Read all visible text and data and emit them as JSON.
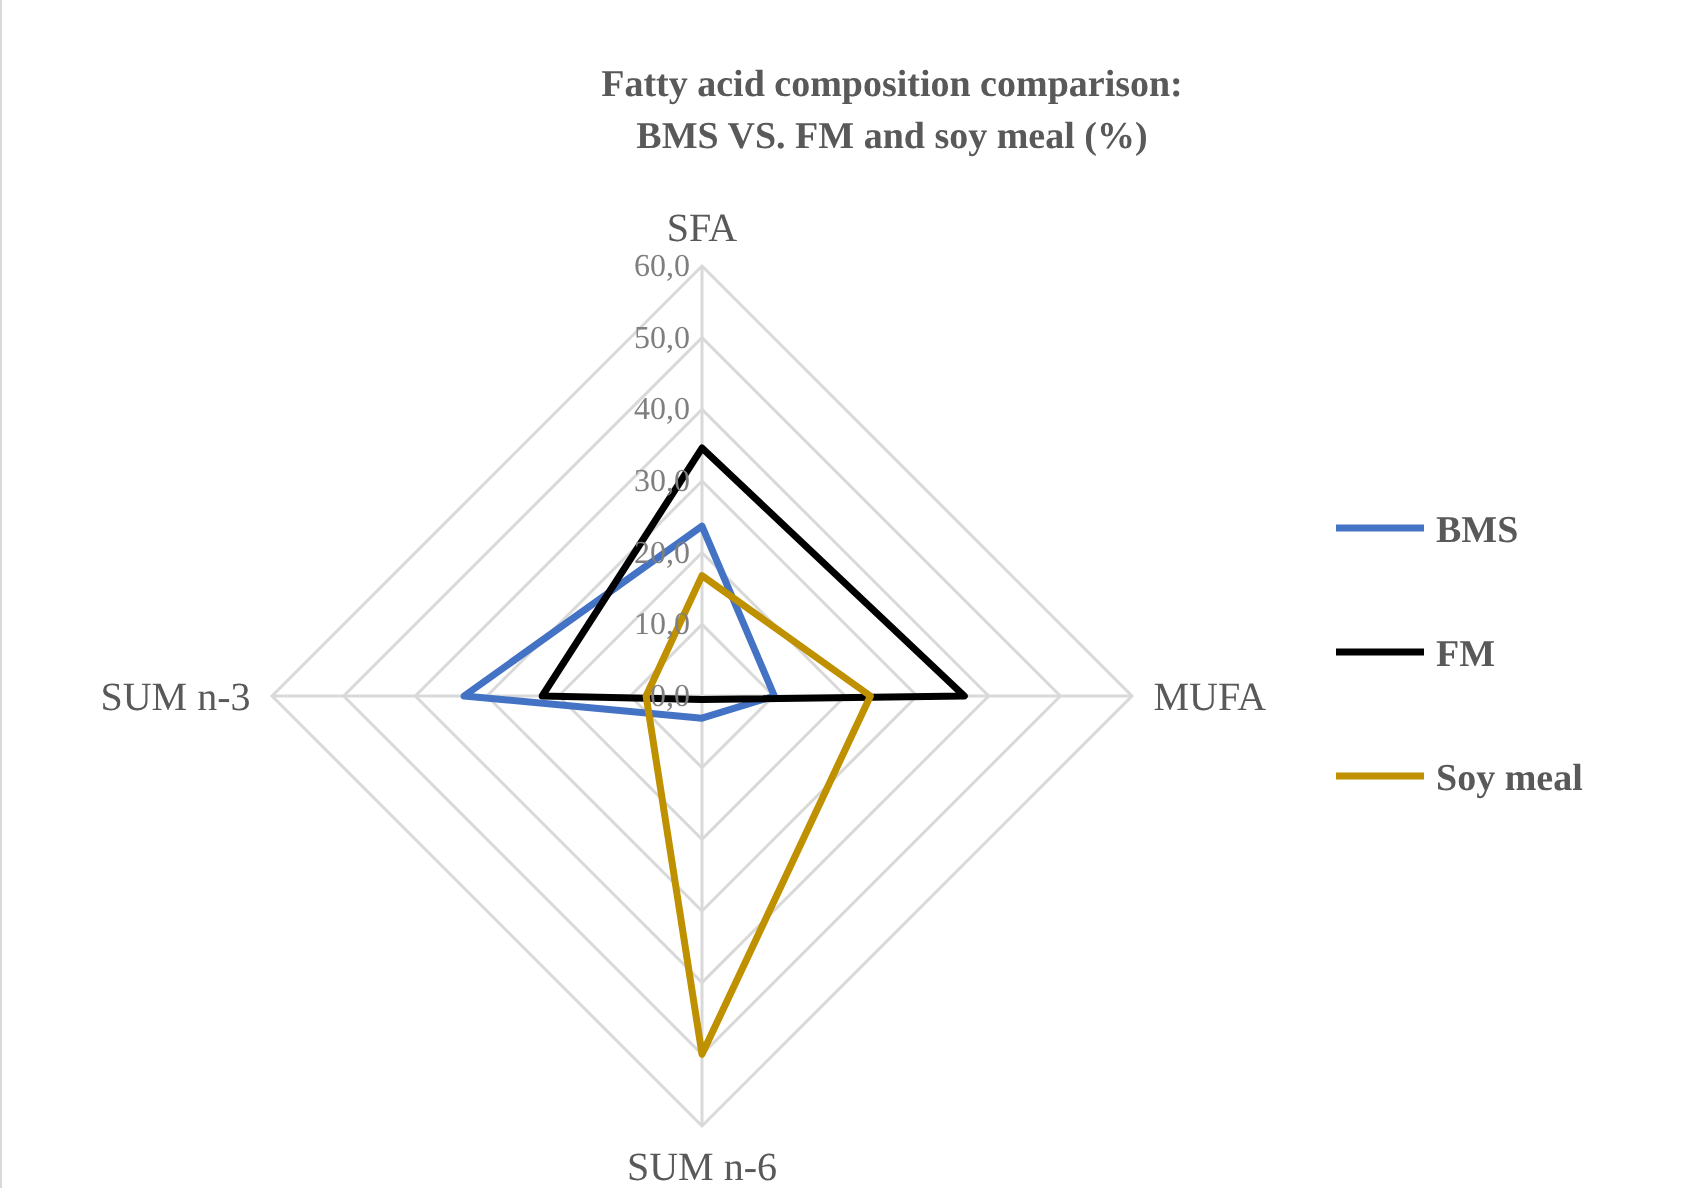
{
  "chart_data": {
    "type": "radar",
    "title": "Fatty acid composition comparison:\nBMS VS. FM and soy meal (%)",
    "categories": [
      "SFA",
      "MUFA",
      "SUM n-6",
      "SUM n-3"
    ],
    "series": [
      {
        "name": "BMS",
        "color": "#4472c4",
        "values": [
          23.7,
          10.1,
          3.1,
          33.2
        ]
      },
      {
        "name": "FM",
        "color": "#000000",
        "values": [
          34.6,
          36.6,
          0.5,
          22.3
        ]
      },
      {
        "name": "Soy meal",
        "color": "#bf9000",
        "values": [
          16.8,
          23.5,
          50.0,
          7.8
        ]
      }
    ],
    "ylim": [
      0,
      60
    ],
    "yticks": [
      {
        "value": 0,
        "label": "0,0"
      },
      {
        "value": 10,
        "label": "10,0"
      },
      {
        "value": 20,
        "label": "20,0"
      },
      {
        "value": 30,
        "label": "30,0"
      },
      {
        "value": 40,
        "label": "40,0"
      },
      {
        "value": 50,
        "label": "50,0"
      },
      {
        "value": 60,
        "label": "60,0"
      }
    ],
    "grid": true,
    "legend": "right",
    "marker": "none"
  }
}
